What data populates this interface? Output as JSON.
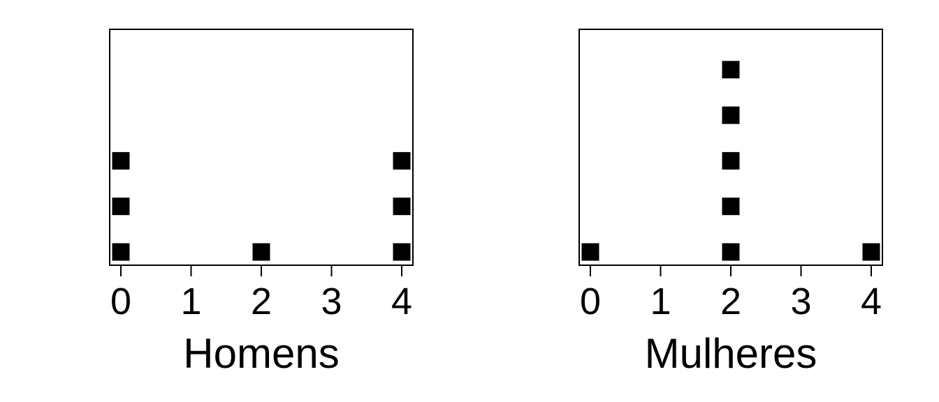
{
  "chart_data": [
    {
      "type": "dot",
      "xlabel": "Homens",
      "x_ticks": [
        "0",
        "1",
        "2",
        "3",
        "4"
      ],
      "xlim": [
        0,
        4
      ],
      "values": [
        0,
        0,
        0,
        2,
        4,
        4,
        4
      ],
      "stacks": [
        {
          "x": 0,
          "count": 3
        },
        {
          "x": 2,
          "count": 1
        },
        {
          "x": 4,
          "count": 3
        }
      ],
      "marker": "square",
      "color": "#000000"
    },
    {
      "type": "dot",
      "xlabel": "Mulheres",
      "x_ticks": [
        "0",
        "1",
        "2",
        "3",
        "4"
      ],
      "xlim": [
        0,
        4
      ],
      "values": [
        0,
        2,
        2,
        2,
        2,
        2,
        4
      ],
      "stacks": [
        {
          "x": 0,
          "count": 1
        },
        {
          "x": 2,
          "count": 5
        },
        {
          "x": 4,
          "count": 1
        }
      ],
      "marker": "square",
      "color": "#000000"
    }
  ]
}
